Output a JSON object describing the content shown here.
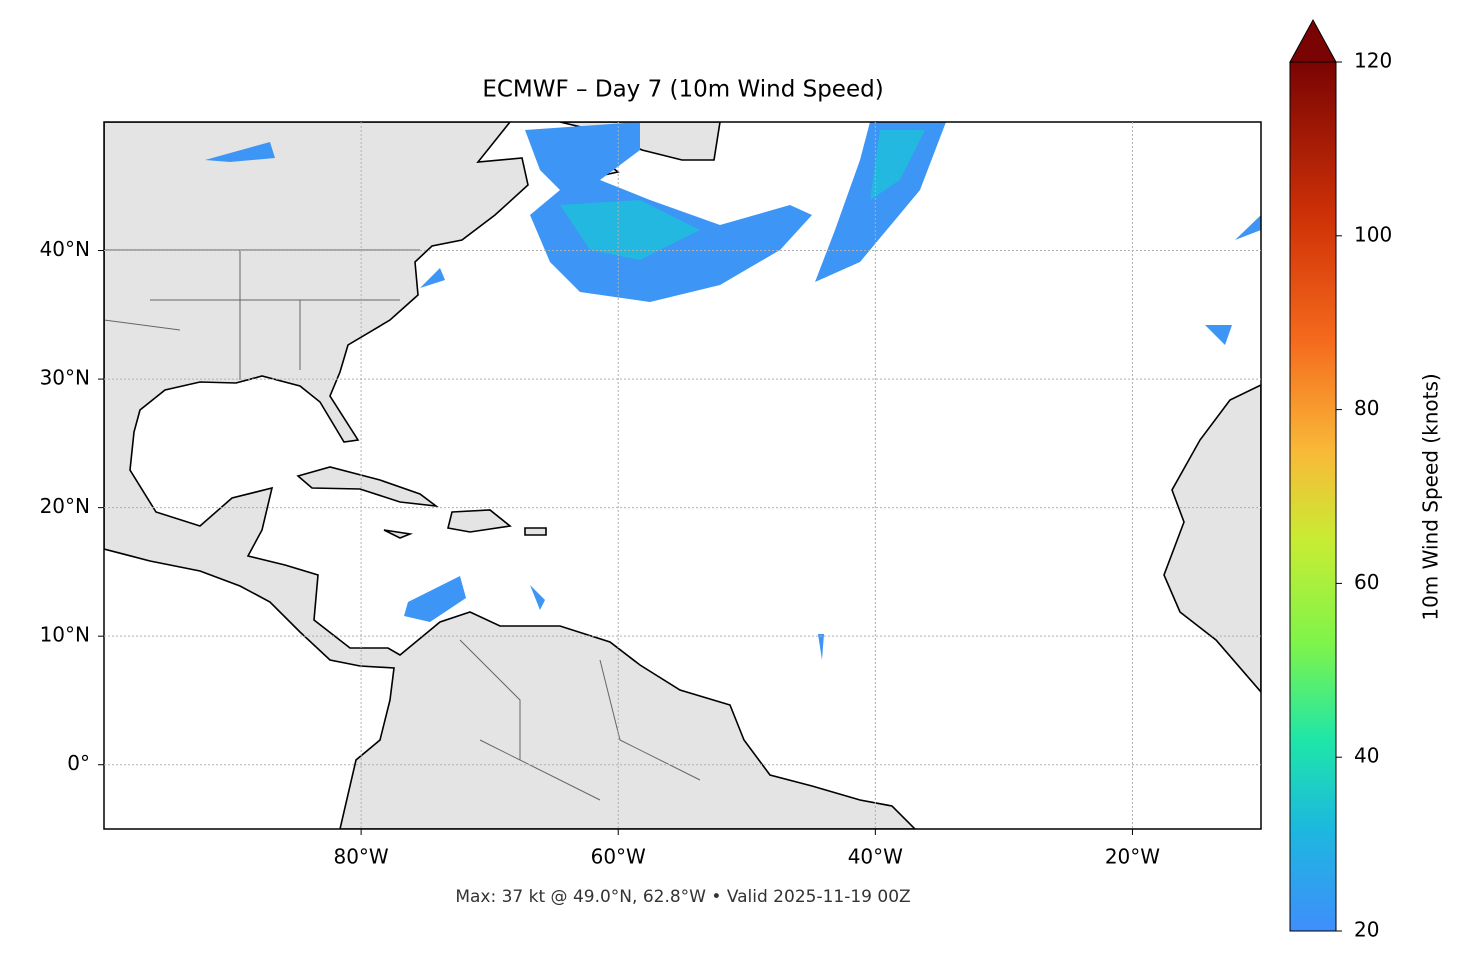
{
  "map": {
    "title": "ECMWF – Day 7 (10m Wind Speed)",
    "xlim": [
      -100,
      -10
    ],
    "ylim": [
      -5,
      50
    ],
    "xticks": [
      {
        "value": -80,
        "label": "80°W"
      },
      {
        "value": -60,
        "label": "60°W"
      },
      {
        "value": -40,
        "label": "40°W"
      },
      {
        "value": -20,
        "label": "20°W"
      }
    ],
    "yticks": [
      {
        "value": 0,
        "label": "0°"
      },
      {
        "value": 10,
        "label": "10°N"
      },
      {
        "value": 20,
        "label": "20°N"
      },
      {
        "value": 30,
        "label": "30°N"
      },
      {
        "value": 40,
        "label": "40°N"
      }
    ],
    "grid": true,
    "footnote": "Max: 37 kt @ 49.0°N, 62.8°W • Valid 2025-11-19 00Z",
    "colorbar": {
      "label": "10m Wind Speed (knots)",
      "lim": [
        20,
        120
      ],
      "ticks": [
        20,
        40,
        60,
        80,
        100,
        120
      ]
    }
  }
}
